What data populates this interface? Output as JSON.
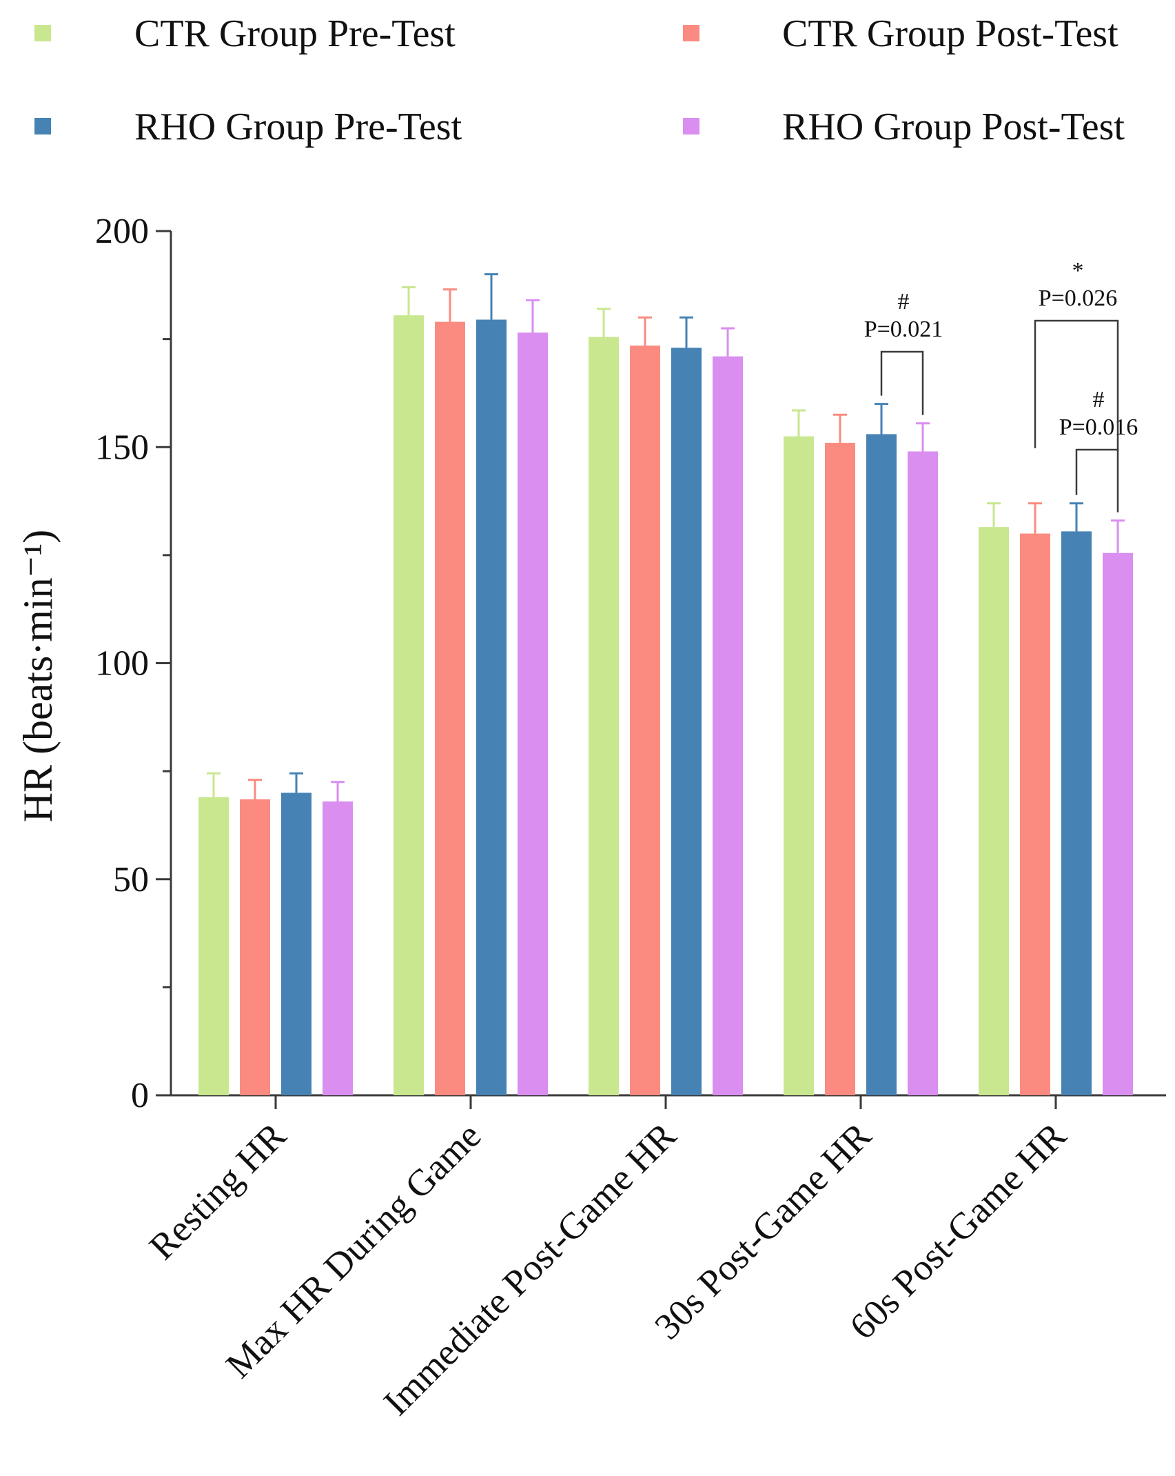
{
  "chart_data": {
    "type": "bar",
    "title": "",
    "xlabel": "",
    "ylabel": "HR (beats·min⁻¹)",
    "ylim": [
      0,
      200
    ],
    "yticks": [
      0,
      50,
      100,
      150,
      200
    ],
    "categories": [
      "Resting HR",
      "Max HR During Game",
      "Immediate Post-Game HR",
      "30s Post-Game HR",
      "60s Post-Game HR"
    ],
    "series": [
      {
        "name": "CTR Group Pre-Test",
        "color": "#c9e78f",
        "values": [
          69,
          180.5,
          175.5,
          152.5,
          131.5
        ],
        "errors": [
          5.5,
          6.5,
          6.5,
          6,
          5.5
        ]
      },
      {
        "name": "CTR Group Post-Test",
        "color": "#fb8b80",
        "values": [
          68.5,
          179,
          173.5,
          151,
          130
        ],
        "errors": [
          4.5,
          7.5,
          6.5,
          6.5,
          7
        ]
      },
      {
        "name": "RHO Group Pre-Test",
        "color": "#4682b4",
        "values": [
          70,
          179.5,
          173,
          153,
          130.5
        ],
        "errors": [
          4.5,
          10.5,
          7,
          7,
          6.5
        ]
      },
      {
        "name": "RHO Group Post-Test",
        "color": "#d98ef0",
        "values": [
          68,
          176.5,
          171,
          149,
          125.5
        ],
        "errors": [
          4.5,
          7.5,
          6.5,
          6.5,
          7.5
        ]
      }
    ],
    "annotations": [
      {
        "category": "30s Post-Game HR",
        "from_series": "RHO Group Pre-Test",
        "to_series": "RHO Group Post-Test",
        "symbol": "#",
        "text": "P=0.021"
      },
      {
        "category": "60s Post-Game HR",
        "from_series": "RHO Group Pre-Test",
        "to_series": "RHO Group Post-Test",
        "symbol": "#",
        "text": "P=0.016"
      },
      {
        "category": "60s Post-Game HR",
        "from_series": "CTR Group Post-Test",
        "to_series": "RHO Group Post-Test",
        "symbol": "*",
        "text": "P=0.026"
      }
    ],
    "legend_position": "top"
  }
}
